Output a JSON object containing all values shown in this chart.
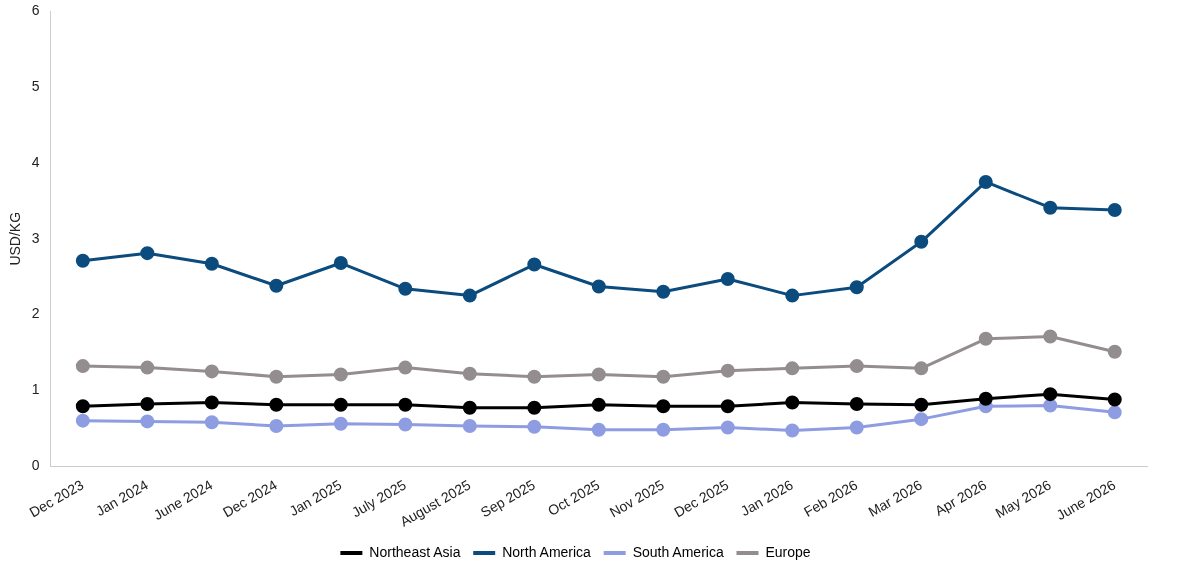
{
  "chart_data": {
    "type": "line",
    "ylabel": "USD/KG",
    "categories": [
      "Dec 2023",
      "Jan 2024",
      "June 2024",
      "Dec 2024",
      "Jan 2025",
      "July 2025",
      "August 2025",
      "Sep 2025",
      "Oct 2025",
      "Nov 2025",
      "Dec 2025",
      "Jan 2026",
      "Feb 2026",
      "Mar 2026",
      "Apr 2026",
      "May 2026",
      "June 2026"
    ],
    "series": [
      {
        "name": "Northeast Asia",
        "color": "#000000",
        "values": [
          0.79,
          0.82,
          0.84,
          0.81,
          0.81,
          0.81,
          0.77,
          0.77,
          0.81,
          0.79,
          0.79,
          0.84,
          0.82,
          0.81,
          0.89,
          0.95,
          0.88
        ]
      },
      {
        "name": "North America",
        "color": "#0b4b7d",
        "values": [
          2.71,
          2.81,
          2.67,
          2.38,
          2.68,
          2.34,
          2.25,
          2.66,
          2.37,
          2.3,
          2.47,
          2.25,
          2.36,
          2.96,
          3.75,
          3.41,
          3.38
        ]
      },
      {
        "name": "South America",
        "color": "#8e9de1",
        "values": [
          0.6,
          0.59,
          0.58,
          0.53,
          0.56,
          0.55,
          0.53,
          0.52,
          0.48,
          0.48,
          0.51,
          0.47,
          0.51,
          0.62,
          0.79,
          0.8,
          0.71
        ]
      },
      {
        "name": "Europe",
        "color": "#938d90",
        "values": [
          1.32,
          1.3,
          1.25,
          1.18,
          1.21,
          1.3,
          1.22,
          1.18,
          1.21,
          1.18,
          1.26,
          1.29,
          1.32,
          1.29,
          1.68,
          1.71,
          1.51
        ]
      }
    ],
    "ylim": [
      0,
      6
    ],
    "yticks": [
      0,
      1,
      2,
      3,
      4,
      5,
      6
    ],
    "grid": false,
    "legend": "bottom",
    "marker": "circle",
    "line_style": "solid"
  }
}
